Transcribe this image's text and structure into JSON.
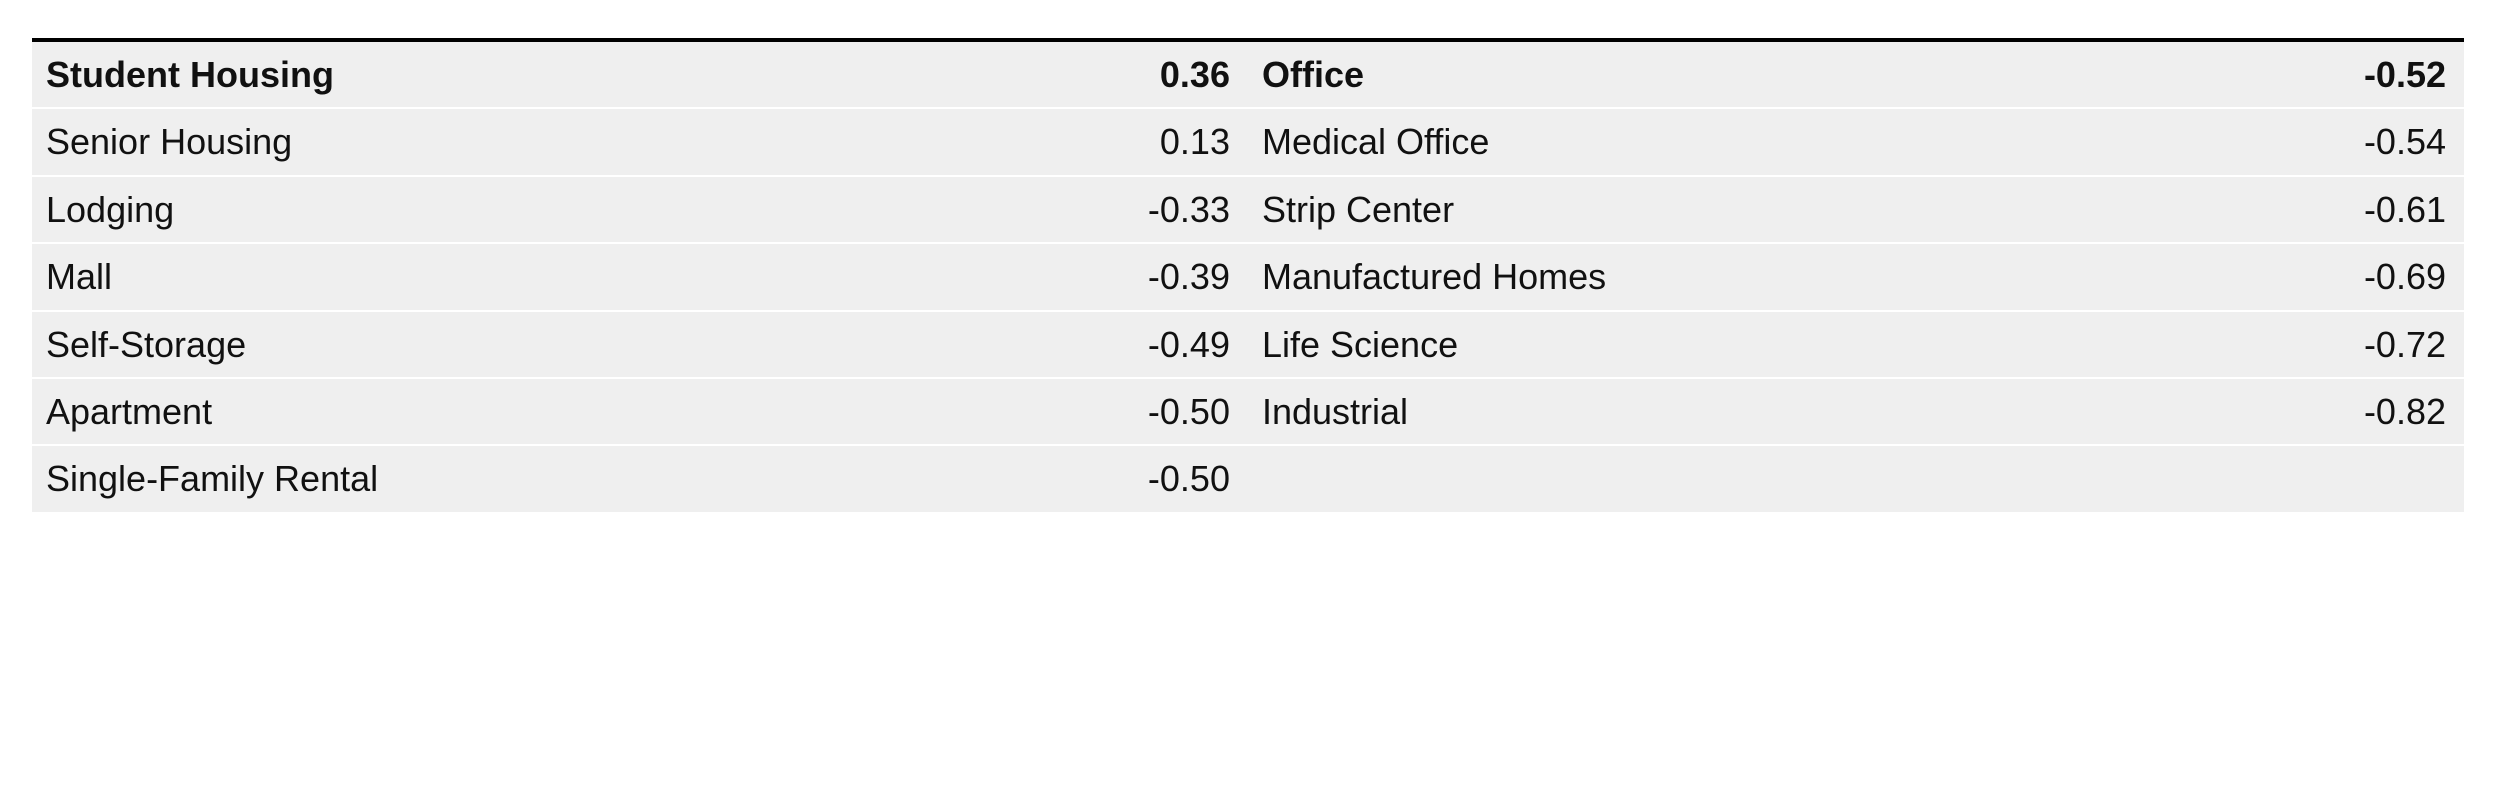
{
  "table": {
    "type": "table",
    "background_color": "#efefef",
    "row_separator_color": "#ffffff",
    "top_border_color": "#000000",
    "text_color": "#111111",
    "font_family": "Arial, Helvetica, sans-serif",
    "font_size_pt": 27,
    "header_bold": true,
    "columns": [
      {
        "key": "label_left",
        "align": "left",
        "width_pct": 33
      },
      {
        "key": "value_left",
        "align": "right",
        "width_pct": 17
      },
      {
        "key": "label_right",
        "align": "left",
        "width_pct": 33
      },
      {
        "key": "value_right",
        "align": "right",
        "width_pct": 17
      }
    ],
    "rows": [
      {
        "label_left": "Student Housing",
        "value_left": "0.36",
        "label_right": "Office",
        "value_right": "-0.52",
        "bold": true
      },
      {
        "label_left": "Senior Housing",
        "value_left": "0.13",
        "label_right": "Medical Office",
        "value_right": "-0.54",
        "bold": false
      },
      {
        "label_left": "Lodging",
        "value_left": "-0.33",
        "label_right": "Strip Center",
        "value_right": "-0.61",
        "bold": false
      },
      {
        "label_left": "Mall",
        "value_left": "-0.39",
        "label_right": "Manufactured Homes",
        "value_right": "-0.69",
        "bold": false
      },
      {
        "label_left": "Self-Storage",
        "value_left": "-0.49",
        "label_right": "Life Science",
        "value_right": "-0.72",
        "bold": false
      },
      {
        "label_left": "Apartment",
        "value_left": "-0.50",
        "label_right": "Industrial",
        "value_right": "-0.82",
        "bold": false
      },
      {
        "label_left": "Single-Family Rental",
        "value_left": "-0.50",
        "label_right": "",
        "value_right": "",
        "bold": false
      }
    ]
  }
}
